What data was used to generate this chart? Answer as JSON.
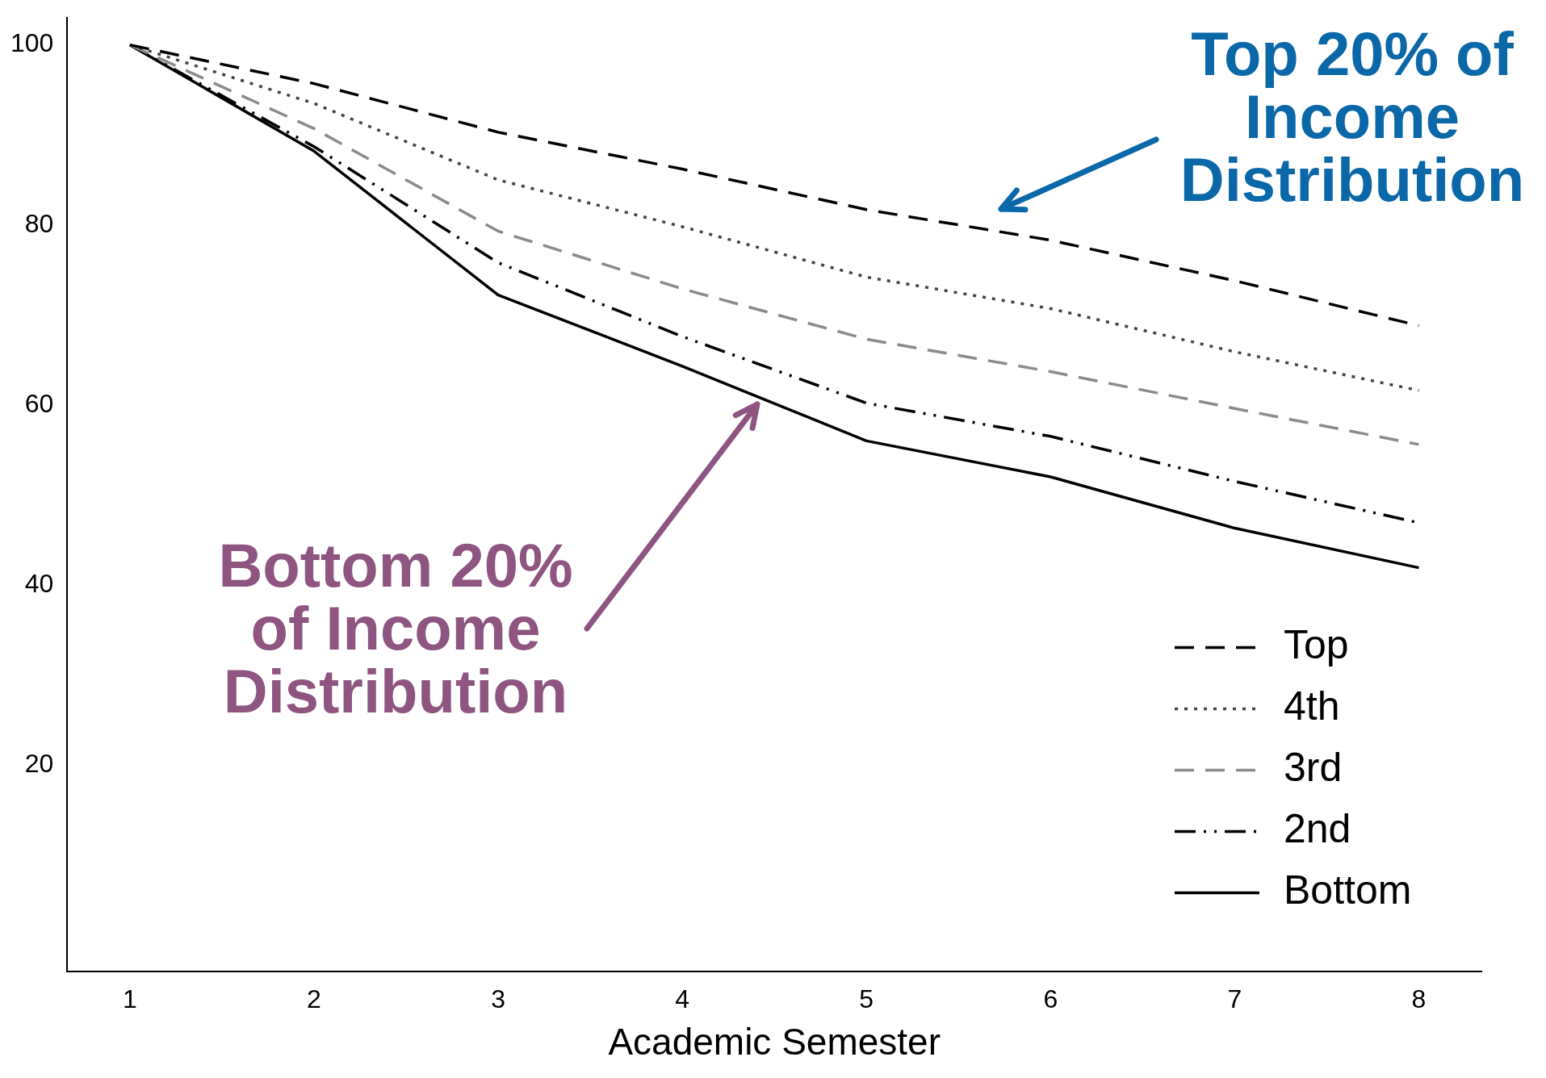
{
  "chart_data": {
    "type": "line",
    "xlabel": "Academic Semester",
    "x": [
      1,
      2,
      3,
      4,
      5,
      6,
      7,
      8
    ],
    "xlim": [
      0.66,
      8.34
    ],
    "xticks": [
      1,
      2,
      3,
      4,
      5,
      6,
      7,
      8
    ],
    "ylim": [
      -3,
      103
    ],
    "yticks": [
      20,
      40,
      60,
      80,
      100
    ],
    "grid": false,
    "legend": "bottom right",
    "marker": "none",
    "series": [
      {
        "name": "Top",
        "color": "#000000",
        "line_style": "dashed",
        "values": [
          100,
          95.7,
          90.3,
          86.2,
          81.7,
          78.3,
          73.8,
          68.8
        ]
      },
      {
        "name": "4th",
        "color": "#444444",
        "line_style": "dotted",
        "values": [
          100,
          93.5,
          85.0,
          79.8,
          74.2,
          70.7,
          65.9,
          61.6
        ]
      },
      {
        "name": "3rd",
        "color": "#8c8c8c",
        "line_style": "dashed",
        "values": [
          100,
          90.7,
          79.3,
          72.9,
          67.3,
          63.7,
          59.6,
          55.6
        ]
      },
      {
        "name": "2nd",
        "color": "#000000",
        "line_style": "dashdot",
        "values": [
          100,
          88.7,
          75.8,
          67.6,
          60.2,
          56.5,
          51.5,
          46.9
        ]
      },
      {
        "name": "Bottom",
        "color": "#000000",
        "line_style": "solid",
        "values": [
          100,
          88.2,
          72.2,
          64.3,
          56.0,
          52.0,
          46.3,
          41.9
        ]
      }
    ],
    "annotations": [
      "Top 20% of Income Distribution",
      "Bottom 20% of Income Distribution"
    ]
  }
}
